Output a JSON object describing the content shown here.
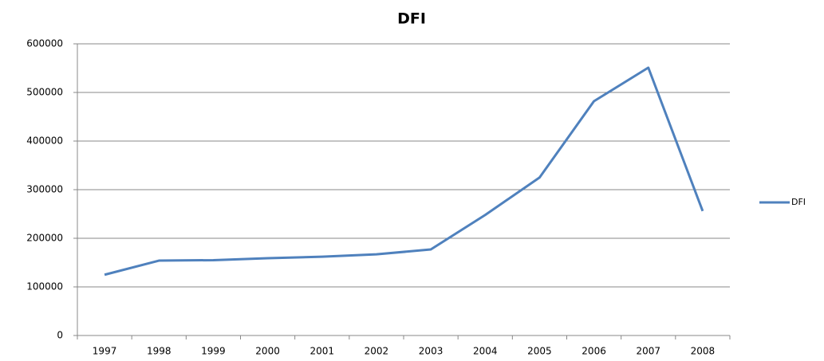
{
  "chart_data": {
    "type": "line",
    "title": "DFI",
    "categories": [
      "1997",
      "1998",
      "1999",
      "2000",
      "2001",
      "2002",
      "2003",
      "2004",
      "2005",
      "2006",
      "2007",
      "2008"
    ],
    "series": [
      {
        "name": "DFI",
        "color": "#4f81bd",
        "values": [
          125000,
          154000,
          155000,
          159000,
          162000,
          167000,
          177000,
          248000,
          325000,
          482000,
          551000,
          256000
        ]
      }
    ],
    "ylim": [
      0,
      600000
    ],
    "yticks": [
      0,
      100000,
      200000,
      300000,
      400000,
      500000,
      600000
    ],
    "grid": true,
    "legend": "right"
  }
}
